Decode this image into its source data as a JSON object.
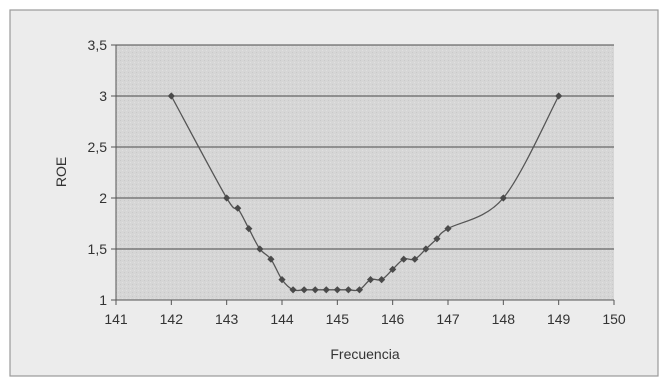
{
  "chart_data": {
    "type": "line",
    "xlabel": "Frecuencia",
    "ylabel": "ROE",
    "xlim": [
      141,
      150
    ],
    "ylim": [
      1,
      3.5
    ],
    "x_ticks": [
      "141",
      "142",
      "143",
      "144",
      "145",
      "146",
      "147",
      "148",
      "149",
      "150"
    ],
    "y_ticks": [
      "1",
      "1,5",
      "2",
      "2,5",
      "3",
      "3,5"
    ],
    "grid": true,
    "legend": "none",
    "colors": {
      "plot_bg": "#d6d6d6",
      "chart_bg": "#ececec",
      "border": "#9a9a9a",
      "gridline": "#4a4a4a",
      "line": "#555555",
      "marker": "#4a4a4a"
    },
    "series": [
      {
        "x": [
          142,
          143,
          143.2,
          143.4,
          143.6,
          143.8,
          144,
          144.2,
          144.4,
          144.6,
          144.8,
          145,
          145.2,
          145.4,
          145.6,
          145.8,
          146,
          146.2,
          146.4,
          146.6,
          146.8,
          147,
          148,
          149
        ],
        "y": [
          3,
          2,
          1.9,
          1.7,
          1.5,
          1.4,
          1.2,
          1.1,
          1.1,
          1.1,
          1.1,
          1.1,
          1.1,
          1.1,
          1.2,
          1.2,
          1.3,
          1.4,
          1.4,
          1.5,
          1.6,
          1.7,
          2,
          3
        ]
      }
    ]
  }
}
